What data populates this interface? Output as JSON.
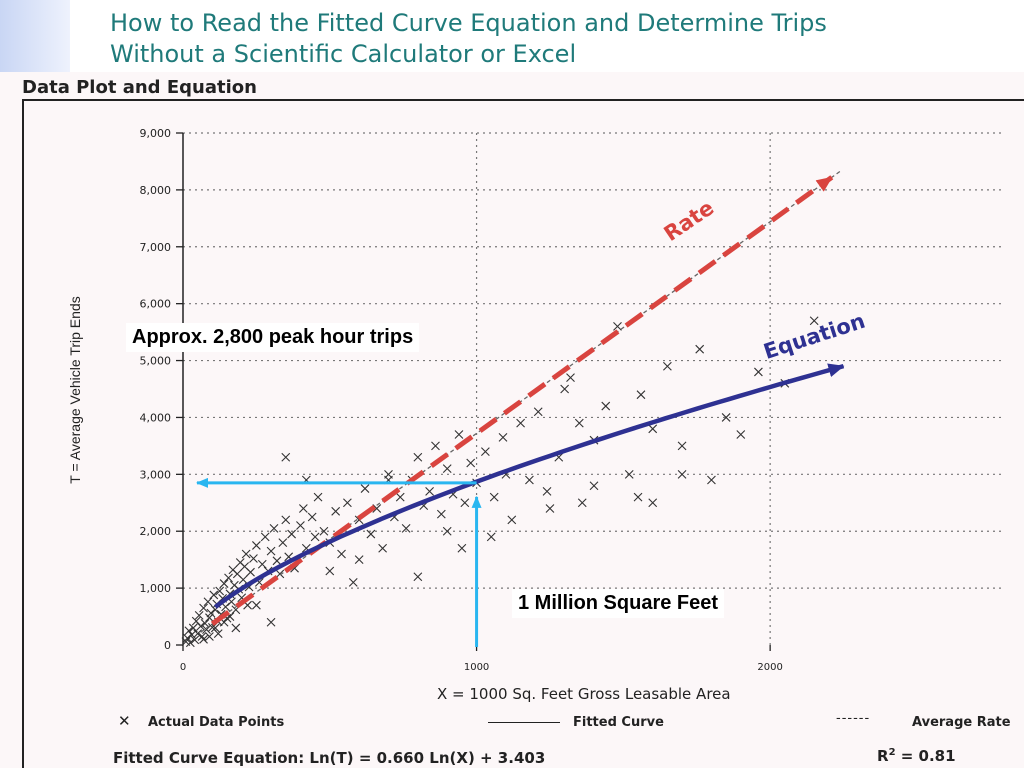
{
  "slide": {
    "title_line1": "How to Read the Fitted Curve Equation and Determine Trips",
    "title_line2": "Without a Scientific Calculator or Excel",
    "panel_heading": "Data Plot and Equation"
  },
  "annotations": {
    "rate_label": "Rate",
    "equation_label": "Equation",
    "trips_callout": "Approx. 2,800 peak hour trips",
    "sqft_callout": "1 Million Square Feet",
    "read_x": 1000,
    "read_y": 2850,
    "colors": {
      "rate": "#d9443f",
      "equation": "#2e3192",
      "guide": "#29b6f0"
    }
  },
  "legend": {
    "points": "Actual Data Points",
    "fitted": "Fitted Curve",
    "average": "Average Rate"
  },
  "footer": {
    "equation": "Fitted Curve Equation:  Ln(T) = 0.660 Ln(X) + 3.403",
    "r2_label": "R",
    "r2_sup": "2",
    "r2_value": " = 0.81"
  },
  "chart_data": {
    "type": "scatter",
    "xlabel": "X = 1000 Sq. Feet Gross Leasable Area",
    "ylabel": "T = Average Vehicle Trip Ends",
    "xlim": [
      0,
      2800
    ],
    "ylim": [
      0,
      9000
    ],
    "x_ticks": [
      0,
      1000,
      2000
    ],
    "x_tick_labels": [
      "0",
      "1000",
      "2000"
    ],
    "y_ticks": [
      0,
      1000,
      2000,
      3000,
      4000,
      5000,
      6000,
      7000,
      8000,
      9000
    ],
    "y_tick_labels": [
      "0",
      "1,000",
      "2,000",
      "3,000",
      "4,000",
      "5,000",
      "6,000",
      "7,000",
      "8,000",
      "9,000"
    ],
    "grid": true,
    "fitted_curve": {
      "a": 0.66,
      "b": 3.403,
      "x_range": [
        110,
        2250
      ]
    },
    "average_rate": {
      "slope": 3.72,
      "x_range": [
        60,
        2210
      ]
    },
    "points": [
      [
        10,
        60
      ],
      [
        15,
        120
      ],
      [
        20,
        250
      ],
      [
        25,
        40
      ],
      [
        30,
        180
      ],
      [
        35,
        300
      ],
      [
        40,
        90
      ],
      [
        45,
        420
      ],
      [
        50,
        200
      ],
      [
        55,
        520
      ],
      [
        60,
        330
      ],
      [
        65,
        150
      ],
      [
        70,
        650
      ],
      [
        75,
        380
      ],
      [
        80,
        270
      ],
      [
        85,
        760
      ],
      [
        90,
        480
      ],
      [
        95,
        560
      ],
      [
        100,
        310
      ],
      [
        105,
        880
      ],
      [
        110,
        620
      ],
      [
        115,
        720
      ],
      [
        120,
        410
      ],
      [
        125,
        950
      ],
      [
        130,
        540
      ],
      [
        135,
        820
      ],
      [
        140,
        1080
      ],
      [
        145,
        670
      ],
      [
        150,
        470
      ],
      [
        155,
        1180
      ],
      [
        160,
        900
      ],
      [
        165,
        760
      ],
      [
        170,
        1320
      ],
      [
        175,
        1050
      ],
      [
        180,
        620
      ],
      [
        185,
        1250
      ],
      [
        190,
        980
      ],
      [
        195,
        1450
      ],
      [
        200,
        830
      ],
      [
        205,
        1150
      ],
      [
        210,
        1380
      ],
      [
        215,
        1600
      ],
      [
        220,
        700
      ],
      [
        225,
        1020
      ],
      [
        230,
        1280
      ],
      [
        240,
        1520
      ],
      [
        250,
        1750
      ],
      [
        260,
        1100
      ],
      [
        270,
        1420
      ],
      [
        280,
        1900
      ],
      [
        290,
        1300
      ],
      [
        300,
        1650
      ],
      [
        310,
        2050
      ],
      [
        320,
        1480
      ],
      [
        330,
        1250
      ],
      [
        340,
        1800
      ],
      [
        350,
        2200
      ],
      [
        360,
        1550
      ],
      [
        370,
        1950
      ],
      [
        380,
        1350
      ],
      [
        400,
        2100
      ],
      [
        410,
        2400
      ],
      [
        420,
        1700
      ],
      [
        440,
        2250
      ],
      [
        450,
        1900
      ],
      [
        460,
        2600
      ],
      [
        480,
        2000
      ],
      [
        500,
        1800
      ],
      [
        520,
        2350
      ],
      [
        540,
        1600
      ],
      [
        560,
        2500
      ],
      [
        580,
        1100
      ],
      [
        600,
        2200
      ],
      [
        620,
        2750
      ],
      [
        640,
        1950
      ],
      [
        660,
        2400
      ],
      [
        680,
        1700
      ],
      [
        700,
        3000
      ],
      [
        720,
        2250
      ],
      [
        740,
        2600
      ],
      [
        760,
        2050
      ],
      [
        780,
        2900
      ],
      [
        800,
        3300
      ],
      [
        820,
        2450
      ],
      [
        840,
        2700
      ],
      [
        860,
        3500
      ],
      [
        880,
        2300
      ],
      [
        900,
        3100
      ],
      [
        920,
        2650
      ],
      [
        940,
        3700
      ],
      [
        960,
        2500
      ],
      [
        980,
        3200
      ],
      [
        1000,
        2850
      ],
      [
        1030,
        3400
      ],
      [
        1060,
        2600
      ],
      [
        1090,
        3650
      ],
      [
        1120,
        2200
      ],
      [
        1150,
        3900
      ],
      [
        1180,
        2900
      ],
      [
        1210,
        4100
      ],
      [
        1240,
        2700
      ],
      [
        1280,
        3300
      ],
      [
        1320,
        4700
      ],
      [
        1360,
        2500
      ],
      [
        1400,
        3600
      ],
      [
        1440,
        4200
      ],
      [
        1480,
        5600
      ],
      [
        1520,
        3000
      ],
      [
        1560,
        4400
      ],
      [
        1600,
        3800
      ],
      [
        1650,
        4900
      ],
      [
        1700,
        3500
      ],
      [
        1760,
        5200
      ],
      [
        1800,
        2900
      ],
      [
        1850,
        4000
      ],
      [
        1900,
        3700
      ],
      [
        1960,
        4800
      ],
      [
        2050,
        4600
      ],
      [
        2150,
        5700
      ],
      [
        1300,
        4500
      ],
      [
        1100,
        3000
      ],
      [
        1400,
        2800
      ],
      [
        1600,
        2500
      ],
      [
        700,
        2900
      ],
      [
        350,
        3300
      ],
      [
        600,
        1500
      ],
      [
        500,
        1300
      ],
      [
        1250,
        2400
      ],
      [
        1700,
        3000
      ],
      [
        1550,
        2600
      ],
      [
        420,
        2900
      ],
      [
        800,
        1200
      ],
      [
        900,
        2000
      ],
      [
        950,
        1700
      ],
      [
        1050,
        1900
      ],
      [
        1350,
        3900
      ],
      [
        300,
        400
      ],
      [
        250,
        700
      ],
      [
        180,
        300
      ],
      [
        140,
        400
      ],
      [
        120,
        200
      ],
      [
        90,
        150
      ],
      [
        70,
        100
      ],
      [
        110,
        300
      ],
      [
        160,
        500
      ]
    ]
  }
}
